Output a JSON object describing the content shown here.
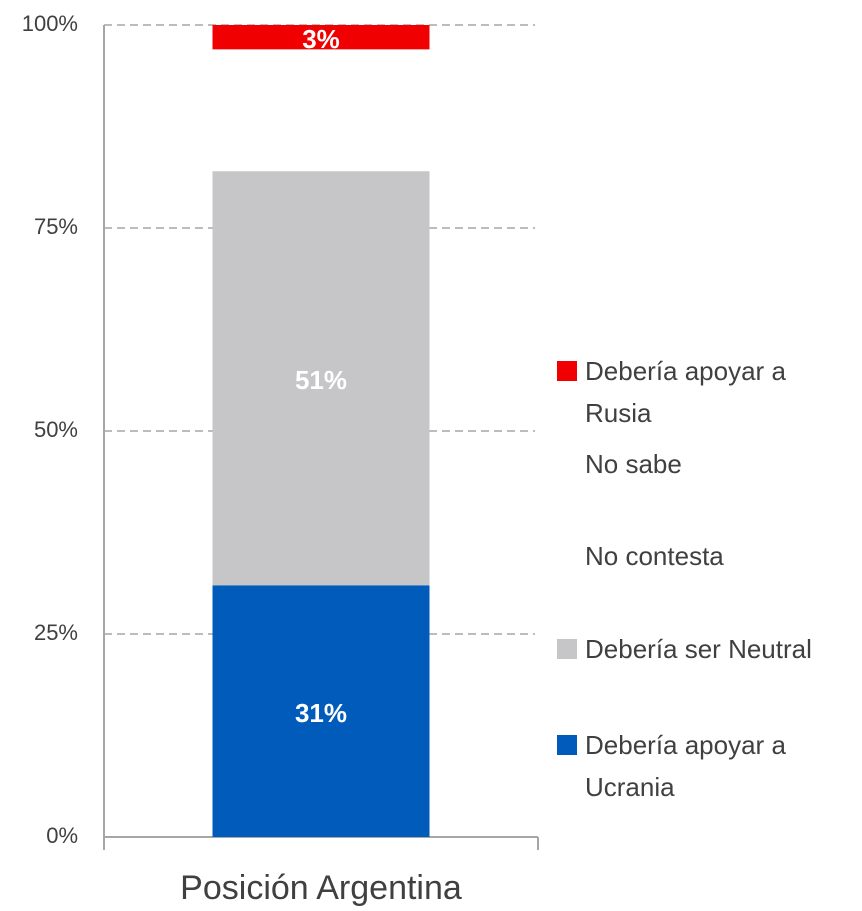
{
  "chart_data": {
    "type": "stacked_bar",
    "categories": [
      "Posición Argentina"
    ],
    "series": [
      {
        "name": "Debería apoyar a Ucrania",
        "color": "#005bbb",
        "values": [
          31
        ],
        "value_labels": [
          "31%"
        ]
      },
      {
        "name": "Debería ser Neutral",
        "color": "#c6c6c8",
        "values": [
          51
        ],
        "value_labels": [
          "51%"
        ]
      },
      {
        "name": "No contesta",
        "color": "#ffffff",
        "values": [
          2
        ]
      },
      {
        "name": "No sabe",
        "color": "#ffffff",
        "values": [
          13
        ]
      },
      {
        "name": "Debería apoyar a Rusia",
        "color": "#f00000",
        "values": [
          3
        ],
        "value_labels": [
          "3%"
        ]
      }
    ],
    "ylim": [
      0,
      100
    ],
    "yticks": [
      {
        "value": 0,
        "label": "0%"
      },
      {
        "value": 25,
        "label": "25%"
      },
      {
        "value": 50,
        "label": "50%"
      },
      {
        "value": 75,
        "label": "75%"
      },
      {
        "value": 100,
        "label": "100%"
      }
    ],
    "grid": true,
    "legend": "right"
  }
}
